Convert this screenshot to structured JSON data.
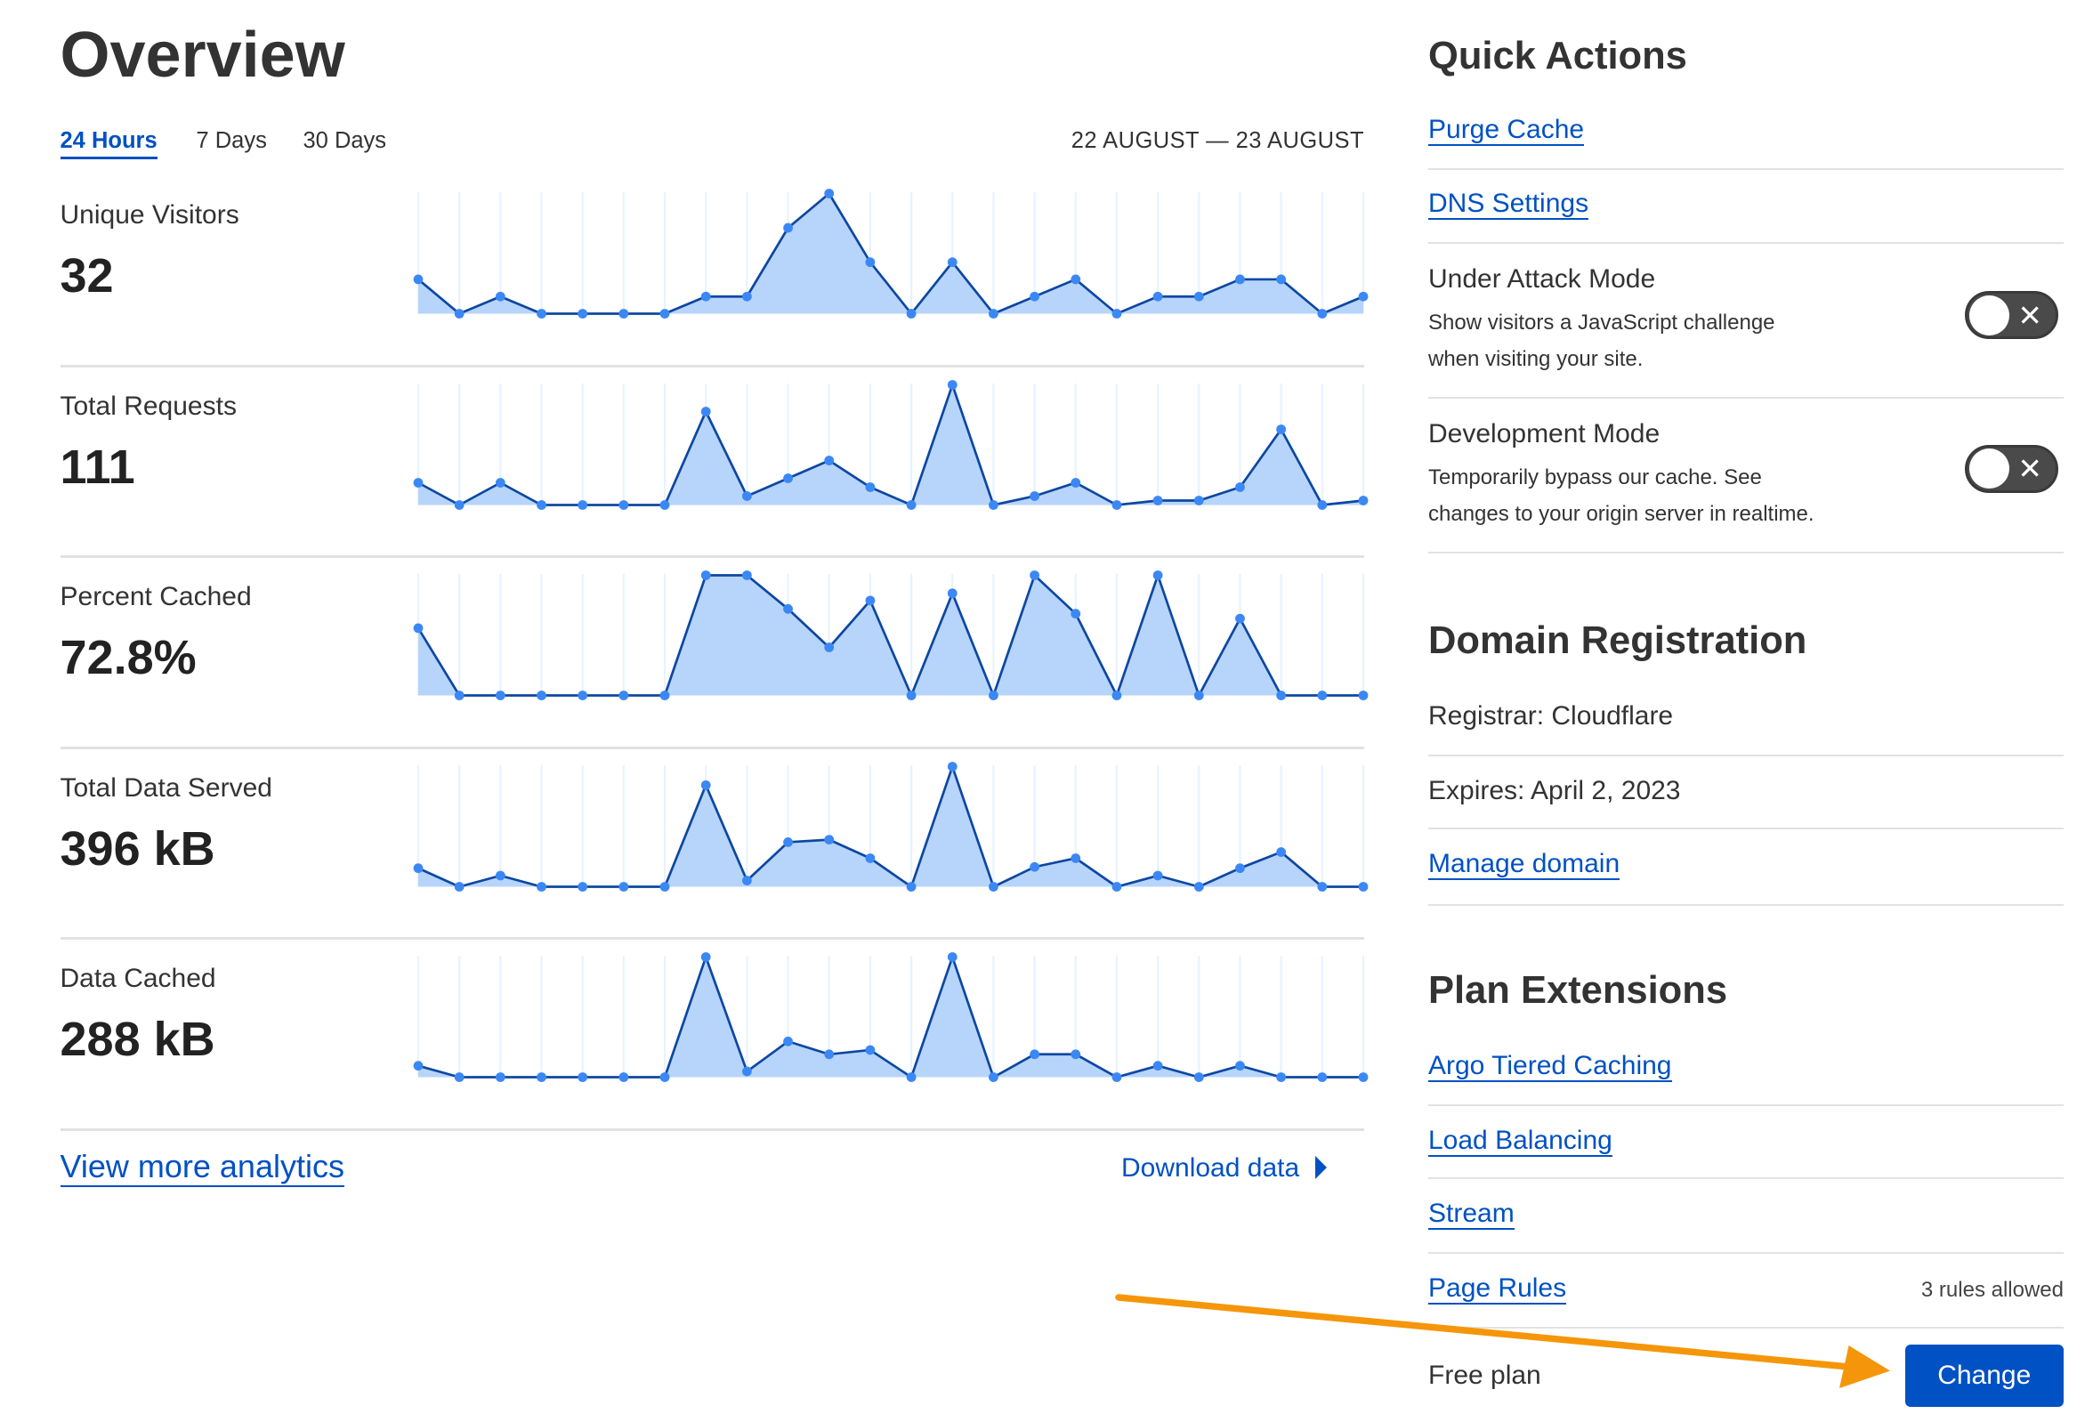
{
  "header": {
    "title": "Overview",
    "tabs": [
      {
        "label": "24 Hours",
        "active": true
      },
      {
        "label": "7 Days"
      },
      {
        "label": "30 Days"
      }
    ],
    "date_range": "22 AUGUST — 23 AUGUST"
  },
  "metrics": [
    {
      "label": "Unique Visitors",
      "value": "32"
    },
    {
      "label": "Total Requests",
      "value": "111"
    },
    {
      "label": "Percent Cached",
      "value": "72.8%"
    },
    {
      "label": "Total Data Served",
      "value": "396 kB"
    },
    {
      "label": "Data Cached",
      "value": "288 kB"
    }
  ],
  "chart_data": [
    {
      "type": "area",
      "series": [
        {
          "values": [
            2,
            0,
            1,
            0,
            0,
            0,
            0,
            1,
            1,
            5,
            7,
            3,
            0,
            3,
            0,
            1,
            2,
            0,
            1,
            1,
            2,
            2,
            0,
            1
          ]
        }
      ]
    },
    {
      "type": "area",
      "series": [
        {
          "values": [
            5,
            0,
            5,
            0,
            0,
            0,
            0,
            21,
            2,
            6,
            10,
            4,
            0,
            27,
            0,
            2,
            5,
            0,
            1,
            1,
            4,
            17,
            0,
            1
          ]
        }
      ]
    },
    {
      "type": "area",
      "series": [
        {
          "values": [
            56,
            0,
            0,
            0,
            0,
            0,
            0,
            100,
            100,
            72,
            40,
            79,
            0,
            85,
            0,
            100,
            68,
            0,
            100,
            0,
            64,
            0,
            0,
            0
          ]
        }
      ]
    },
    {
      "type": "area",
      "series": [
        {
          "values": [
            15,
            0,
            9,
            0,
            0,
            0,
            0,
            82,
            5,
            36,
            38,
            23,
            0,
            97,
            0,
            16,
            23,
            0,
            9,
            0,
            15,
            28,
            0,
            0
          ]
        }
      ]
    },
    {
      "type": "area",
      "series": [
        {
          "values": [
            8,
            0,
            0,
            0,
            0,
            0,
            0,
            84,
            4,
            25,
            16,
            19,
            0,
            84,
            0,
            16,
            16,
            0,
            8,
            0,
            8,
            0,
            0,
            0
          ]
        }
      ]
    }
  ],
  "footer": {
    "view_more": "View more analytics",
    "download": "Download data"
  },
  "quick_actions": {
    "title": "Quick Actions",
    "links": [
      "Purge Cache",
      "DNS Settings"
    ],
    "toggles": [
      {
        "title": "Under Attack Mode",
        "desc1": "Show visitors a JavaScript challenge",
        "desc2": "when visiting your site.",
        "on": false
      },
      {
        "title": "Development Mode",
        "desc1": "Temporarily bypass our cache. See",
        "desc2": "changes to your origin server in realtime.",
        "on": false
      }
    ]
  },
  "domain": {
    "title": "Domain Registration",
    "registrar": "Registrar: Cloudflare",
    "expires": "Expires: April 2, 2023",
    "manage": "Manage domain"
  },
  "plan": {
    "title": "Plan Extensions",
    "links": [
      "Argo Tiered Caching",
      "Load Balancing",
      "Stream",
      "Page Rules"
    ],
    "page_rules_note": "3 rules allowed",
    "plan_name": "Free plan",
    "change": "Change"
  },
  "colors": {
    "accent": "#0051c3",
    "chart_fill": "#b7d4fb",
    "chart_line": "#0d47a1",
    "chart_dot": "#3b88f5",
    "annotation_arrow": "#f5960a"
  }
}
